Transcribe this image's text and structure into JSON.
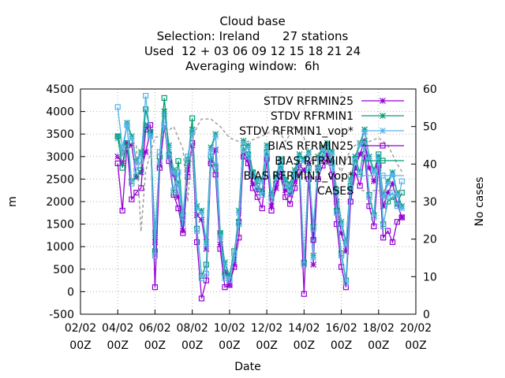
{
  "chart_data": {
    "type": "line",
    "title_lines": [
      "Cloud base",
      "Selection: Ireland      27 stations",
      "Used  12 + 03 06 09 12 15 18 21 24",
      "Averaging window:  6h"
    ],
    "xlabel": "Date",
    "ylabel": "m",
    "y2label": "No cases",
    "x_ticks": [
      "02/02 00Z",
      "04/02 00Z",
      "06/02 00Z",
      "08/02 00Z",
      "10/02 00Z",
      "12/02 00Z",
      "14/02 00Z",
      "16/02 00Z",
      "18/02 00Z",
      "20/02 00Z"
    ],
    "xlim": [
      0,
      18
    ],
    "ylim": [
      -500,
      4500
    ],
    "yticks": [
      -500,
      0,
      500,
      1000,
      1500,
      2000,
      2500,
      3000,
      3500,
      4000,
      4500
    ],
    "y2lim": [
      0,
      60
    ],
    "y2ticks": [
      0,
      10,
      20,
      30,
      40,
      50,
      60
    ],
    "grid": true,
    "legend_position": "top-right",
    "x_unit": "days since 02/02 00Z",
    "series": [
      {
        "name": "STDV RFRMIN25",
        "color": "#9400d3",
        "marker": "star",
        "axis": "y",
        "x": [
          2.0,
          2.25,
          2.5,
          2.75,
          3.0,
          3.25,
          3.5,
          3.75,
          4.0,
          4.25,
          4.5,
          4.75,
          5.0,
          5.25,
          5.5,
          5.75,
          6.0,
          6.25,
          6.5,
          6.75,
          7.0,
          7.25,
          7.5,
          7.75,
          8.0,
          8.25,
          8.5,
          8.75,
          9.0,
          9.25,
          9.5,
          9.75,
          10.0,
          10.25,
          10.5,
          10.75,
          11.0,
          11.25,
          11.5,
          11.75,
          12.0,
          12.25,
          12.5,
          12.75,
          13.0,
          13.25,
          13.5,
          13.75,
          14.0,
          14.25,
          14.5,
          14.75,
          15.0,
          15.25,
          15.5,
          15.75,
          16.0,
          16.25,
          16.5,
          16.75,
          17.0,
          17.25
        ],
        "y": [
          3000,
          2850,
          3300,
          3250,
          2550,
          2650,
          3100,
          3550,
          1100,
          2800,
          3650,
          3000,
          2600,
          2100,
          1350,
          2700,
          3250,
          1700,
          1600,
          950,
          2900,
          3150,
          1050,
          450,
          150,
          600,
          1550,
          3050,
          2950,
          2400,
          2250,
          2250,
          3000,
          1900,
          2300,
          2700,
          2250,
          2150,
          2450,
          2800,
          2700,
          2850,
          600,
          2750,
          2950,
          3050,
          2850,
          2000,
          1300,
          900,
          2250,
          2750,
          3050,
          3350,
          2750,
          2450,
          2750,
          1900,
          2200,
          2400,
          1950,
          1650
        ]
      },
      {
        "name": "STDV RFRMIN1",
        "color": "#009e73",
        "marker": "star",
        "axis": "y",
        "x": [
          2.0,
          2.25,
          2.5,
          2.75,
          3.0,
          3.25,
          3.5,
          3.75,
          4.0,
          4.25,
          4.5,
          4.75,
          5.0,
          5.25,
          5.5,
          5.75,
          6.0,
          6.25,
          6.5,
          6.75,
          7.0,
          7.25,
          7.5,
          7.75,
          8.0,
          8.25,
          8.5,
          8.75,
          9.0,
          9.25,
          9.5,
          9.75,
          10.0,
          10.25,
          10.5,
          10.75,
          11.0,
          11.25,
          11.5,
          11.75,
          12.0,
          12.25,
          12.5,
          12.75,
          13.0,
          13.25,
          13.5,
          13.75,
          14.0,
          14.25,
          14.5,
          14.75,
          15.0,
          15.25,
          15.5,
          15.75,
          16.0,
          16.25,
          16.5,
          16.75,
          17.0,
          17.25
        ],
        "y": [
          3450,
          3100,
          3750,
          3450,
          2900,
          3100,
          3700,
          3500,
          1300,
          2900,
          4000,
          3250,
          2700,
          2400,
          1550,
          2950,
          3600,
          1900,
          1800,
          1100,
          3200,
          3500,
          1300,
          650,
          350,
          750,
          1800,
          3350,
          3250,
          2650,
          2500,
          2500,
          3250,
          2150,
          2550,
          2950,
          2500,
          2400,
          2700,
          3050,
          2950,
          3100,
          800,
          3000,
          3200,
          3300,
          3100,
          2250,
          1550,
          1100,
          2500,
          3000,
          3300,
          3600,
          3000,
          2700,
          3000,
          2150,
          2450,
          2650,
          2200,
          1900
        ]
      },
      {
        "name": "STDV RFRMIN1_vop*",
        "color": "#56b4e9",
        "marker": "star",
        "axis": "y",
        "x": [
          2.0,
          2.25,
          2.5,
          2.75,
          3.0,
          3.25,
          3.5,
          3.75,
          4.0,
          4.25,
          4.5,
          4.75,
          5.0,
          5.25,
          5.5,
          5.75,
          6.0,
          6.25,
          6.5,
          6.75,
          7.0,
          7.25,
          7.5,
          7.75,
          8.0,
          8.25,
          8.5,
          8.75,
          9.0,
          9.25,
          9.5,
          9.75,
          10.0,
          10.25,
          10.5,
          10.75,
          11.0,
          11.25,
          11.5,
          11.75,
          12.0,
          12.25,
          12.5,
          12.75,
          13.0,
          13.25,
          13.5,
          13.75,
          14.0,
          14.25,
          14.5,
          14.75,
          15.0,
          15.25,
          15.5,
          15.75,
          16.0,
          16.25,
          16.5,
          16.75,
          17.0,
          17.25
        ],
        "y": [
          3400,
          3050,
          3700,
          3400,
          2850,
          3050,
          3650,
          3450,
          1250,
          2850,
          3950,
          3200,
          2650,
          2350,
          1500,
          2900,
          3550,
          1850,
          1750,
          1050,
          3150,
          3450,
          1250,
          600,
          300,
          700,
          1750,
          3300,
          3200,
          2600,
          2450,
          2450,
          3200,
          2100,
          2500,
          2900,
          2450,
          2350,
          2650,
          3000,
          2900,
          3050,
          750,
          2950,
          3150,
          3250,
          3050,
          2200,
          1500,
          1050,
          2450,
          2950,
          3250,
          3550,
          2950,
          2650,
          2950,
          2100,
          2400,
          2600,
          2150,
          1850
        ]
      },
      {
        "name": "BIAS RFRMIN25",
        "color": "#9400d3",
        "marker": "square",
        "axis": "y",
        "x": [
          2.0,
          2.25,
          2.5,
          2.75,
          3.0,
          3.25,
          3.5,
          3.75,
          4.0,
          4.25,
          4.5,
          4.75,
          5.0,
          5.25,
          5.5,
          5.75,
          6.0,
          6.25,
          6.5,
          6.75,
          7.0,
          7.25,
          7.5,
          7.75,
          8.0,
          8.25,
          8.5,
          8.75,
          9.0,
          9.25,
          9.5,
          9.75,
          10.0,
          10.25,
          10.5,
          10.75,
          11.0,
          11.25,
          11.5,
          11.75,
          12.0,
          12.25,
          12.5,
          12.75,
          13.0,
          13.25,
          13.5,
          13.75,
          14.0,
          14.25,
          14.5,
          14.75,
          15.0,
          15.25,
          15.5,
          15.75,
          16.0,
          16.25,
          16.5,
          16.75,
          17.0,
          17.25
        ],
        "y": [
          2850,
          1800,
          3250,
          2050,
          2200,
          2300,
          3600,
          3700,
          100,
          2750,
          3700,
          2900,
          2150,
          1850,
          1300,
          2550,
          3300,
          1100,
          -150,
          250,
          2850,
          2600,
          950,
          100,
          150,
          550,
          1200,
          3000,
          2850,
          2300,
          2100,
          1850,
          2950,
          1800,
          2400,
          2550,
          2100,
          1950,
          2300,
          2650,
          -50,
          2500,
          1150,
          2500,
          2800,
          2950,
          2600,
          1500,
          550,
          100,
          2000,
          2650,
          2350,
          3050,
          1900,
          1450,
          2800,
          1200,
          1350,
          1100,
          1550,
          1650
        ]
      },
      {
        "name": "BIAS RFRMIN1",
        "color": "#009e73",
        "marker": "square",
        "axis": "y",
        "x": [
          2.0,
          2.25,
          2.5,
          2.75,
          3.0,
          3.25,
          3.5,
          3.75,
          4.0,
          4.25,
          4.5,
          4.75,
          5.0,
          5.25,
          5.5,
          5.75,
          6.0,
          6.25,
          6.5,
          6.75,
          7.0,
          7.25,
          7.5,
          7.75,
          8.0,
          8.25,
          8.5,
          8.75,
          9.0,
          9.25,
          9.5,
          9.75,
          10.0,
          10.25,
          10.5,
          10.75,
          11.0,
          11.25,
          11.5,
          11.75,
          12.0,
          12.25,
          12.5,
          12.75,
          13.0,
          13.25,
          13.5,
          13.75,
          14.0,
          14.25,
          14.5,
          14.75,
          15.0,
          15.25,
          15.5,
          15.75,
          16.0,
          16.25,
          16.5,
          16.75,
          17.0,
          17.25
        ],
        "y": [
          3450,
          2750,
          3300,
          2450,
          2550,
          2700,
          4050,
          3550,
          900,
          3000,
          4300,
          3050,
          2200,
          2900,
          1700,
          2850,
          3850,
          1400,
          350,
          600,
          3000,
          2750,
          1300,
          400,
          350,
          900,
          1550,
          3200,
          3050,
          2650,
          2350,
          2200,
          3100,
          2100,
          2600,
          2800,
          2400,
          2250,
          2600,
          2950,
          650,
          2750,
          1450,
          2750,
          3050,
          3200,
          2850,
          1800,
          850,
          250,
          2350,
          2950,
          2650,
          3300,
          2150,
          1700,
          3050,
          1500,
          2000,
          2100,
          1950,
          2200
        ]
      },
      {
        "name": "BIAS RFRMIN1_vop*",
        "color": "#56b4e9",
        "marker": "square",
        "axis": "y",
        "x": [
          2.0,
          2.25,
          2.5,
          2.75,
          3.0,
          3.25,
          3.5,
          3.75,
          4.0,
          4.25,
          4.5,
          4.75,
          5.0,
          5.25,
          5.5,
          5.75,
          6.0,
          6.25,
          6.5,
          6.75,
          7.0,
          7.25,
          7.5,
          7.75,
          8.0,
          8.25,
          8.5,
          8.75,
          9.0,
          9.25,
          9.5,
          9.75,
          10.0,
          10.25,
          10.5,
          10.75,
          11.0,
          11.25,
          11.5,
          11.75,
          12.0,
          12.25,
          12.5,
          12.75,
          13.0,
          13.25,
          13.5,
          13.75,
          14.0,
          14.25,
          14.5,
          14.75,
          15.0,
          15.25,
          15.5,
          15.75,
          16.0,
          16.25,
          16.5,
          16.75,
          17.0,
          17.25
        ],
        "y": [
          4100,
          3200,
          3700,
          2400,
          2700,
          2900,
          4350,
          3450,
          800,
          3100,
          3700,
          3000,
          2250,
          2650,
          1650,
          3000,
          3550,
          1350,
          300,
          400,
          3050,
          2800,
          1200,
          300,
          250,
          850,
          1500,
          3150,
          3000,
          2600,
          2300,
          2150,
          3050,
          2050,
          2550,
          2750,
          2350,
          2200,
          2550,
          2900,
          600,
          2700,
          1400,
          2700,
          3000,
          3150,
          2800,
          1750,
          800,
          200,
          2300,
          2900,
          2600,
          3250,
          2100,
          1650,
          3000,
          1450,
          2100,
          2200,
          1900,
          2450
        ]
      },
      {
        "name": "CASES",
        "color": "#a0a0a0",
        "marker": "none",
        "dashed": true,
        "axis": "y2",
        "x": [
          2.0,
          2.5,
          3.0,
          3.25,
          3.5,
          3.75,
          4.0,
          4.5,
          5.0,
          5.5,
          5.75,
          6.0,
          6.25,
          6.5,
          7.0,
          7.5,
          8.0,
          8.5,
          9.0,
          9.5,
          10.0,
          10.5,
          11.0,
          11.5,
          12.0,
          12.5,
          13.0,
          13.5,
          14.0,
          14.5,
          15.0,
          15.5,
          16.0,
          16.5,
          17.0,
          17.25
        ],
        "y": [
          42,
          44,
          45,
          22,
          38,
          43,
          47,
          48,
          50,
          44,
          30,
          46,
          50,
          52,
          52,
          50,
          47,
          46,
          46,
          47,
          48,
          50,
          46,
          50,
          47,
          40,
          45,
          42,
          38,
          44,
          46,
          46,
          47,
          45,
          40,
          38
        ]
      }
    ]
  }
}
